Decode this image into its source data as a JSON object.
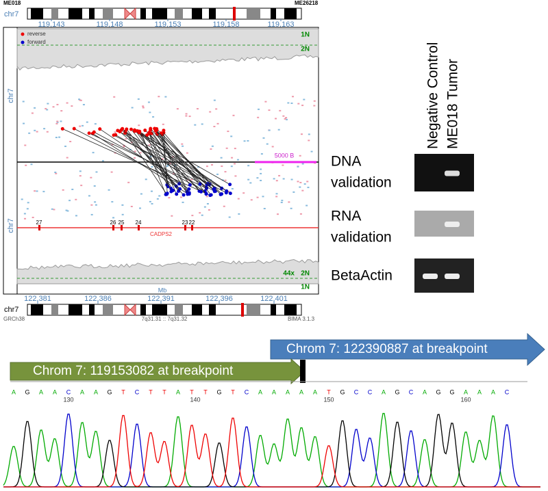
{
  "ideogram_top": {
    "left_id": "ME018",
    "right_id": "ME26218",
    "chrom": "chr7",
    "ticks": [
      "119,143",
      "119,148",
      "119,153",
      "119,158",
      "119,163"
    ],
    "unit": "Mb"
  },
  "plot": {
    "legend": [
      "reverse",
      "forward"
    ],
    "chrom_labels": [
      "chr7",
      "chr7"
    ],
    "copy_top": [
      "1N",
      "2N"
    ],
    "scale": "5000 B",
    "exons": [
      "27",
      "26",
      "25",
      "24",
      "23",
      "22"
    ],
    "gene": "CADPS2",
    "depth": "44x",
    "copy_bottom": [
      "2N",
      "1N"
    ],
    "unit": "Mb"
  },
  "ideogram_bottom": {
    "chrom": "chr7",
    "ticks": [
      "122,381",
      "122,386",
      "122,391",
      "122,396",
      "122,401"
    ],
    "assembly": "GRCh38",
    "band": "7q31.31 :: 7q31.32",
    "version": "BIMA 3.1.3"
  },
  "gel": {
    "lanes": [
      "Negative Control",
      "ME018 Tumor"
    ],
    "rows": [
      [
        "DNA",
        "validation"
      ],
      [
        "RNA",
        "validation"
      ],
      [
        "BetaActin"
      ]
    ]
  },
  "sequence": {
    "arrows": [
      "Chrom 7: 122390887 at breakpoint",
      "Chrom 7: 119153082 at breakpoint"
    ],
    "bases": [
      "A",
      "G",
      "A",
      "A",
      "C",
      "A",
      "A",
      "G",
      "T",
      "C",
      "T",
      "T",
      "A",
      "T",
      "T",
      "G",
      "T",
      "C",
      "A",
      "A",
      "A",
      "A",
      "A",
      "T",
      "G",
      "C",
      "C",
      "A",
      "G",
      "C",
      "A",
      "G",
      "G",
      "A",
      "A",
      "A",
      "C"
    ],
    "positions": [
      "130",
      "140",
      "150",
      "160"
    ]
  }
}
